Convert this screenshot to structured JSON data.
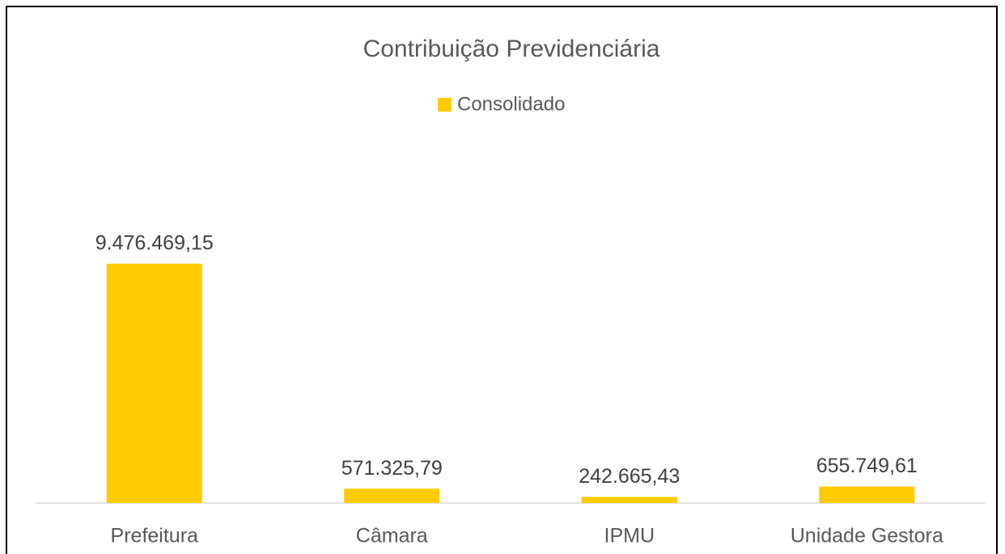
{
  "chart_data": {
    "type": "bar",
    "title": "Contribuição Previdenciária",
    "legend": "Consolidado",
    "categories": [
      "Prefeitura",
      "Câmara",
      "IPMU",
      "Unidade Gestora"
    ],
    "series": [
      {
        "name": "Consolidado",
        "color": "#ffcc00",
        "values": [
          9476469.15,
          571325.79,
          242665.43,
          655749.61
        ],
        "value_labels": [
          "9.476.469,15",
          "571.325,79",
          "242.665,43",
          "655.749,61"
        ]
      }
    ]
  }
}
